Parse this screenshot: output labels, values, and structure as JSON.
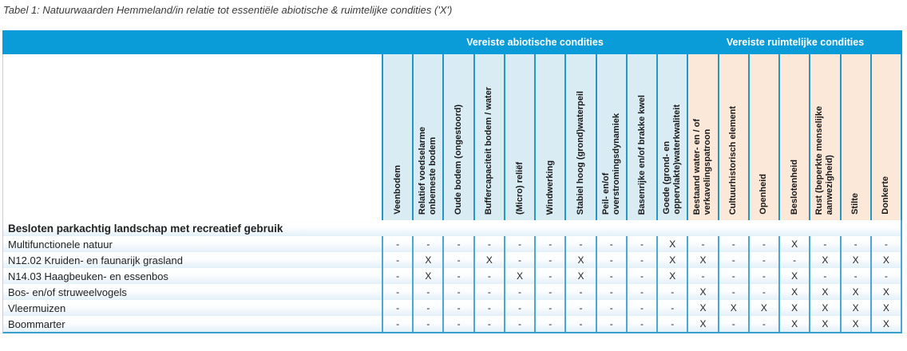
{
  "title": "Tabel 1: Natuurwaarden Hemmeland/in relatie tot essentiële abiotische & ruimtelijke condities ('X')",
  "groups": [
    {
      "label": "Vereiste abiotische condities",
      "columns": 10
    },
    {
      "label": "Vereiste ruimtelijke condities",
      "columns": 7
    }
  ],
  "columns": [
    "Veenbodem",
    "Relatief voedselarme\nonbemeste bodem",
    "Oude bodem (ongestoord)",
    "Buffercapaciteit bodem / water",
    "(Micro) reliëf",
    "Windwerking",
    "Stabiel hoog (grond)waterpeil",
    "Peil- en/of\noverstromingsdynamiek",
    "Basenrijke en/of brakke kwel",
    "Goede (grond- en\noppervlakte)waterkwaliteit",
    "Bestaand water- en / of\nverkavelingspatroon",
    "Cultuurhistorisch element",
    "Openheid",
    "Beslotenheid",
    "Rust (beperkte menselijke\naanwezigheid)",
    "Stilte",
    "Donkerte"
  ],
  "section_header": "Besloten parkachtig landschap met recreatief gebruik",
  "rows": [
    {
      "label": "Multifunctionele natuur",
      "values": [
        "-",
        "-",
        "-",
        "-",
        "-",
        "-",
        "-",
        "-",
        "-",
        "X",
        "-",
        "-",
        "-",
        "X",
        "-",
        "-",
        "-"
      ]
    },
    {
      "label": "N12.02 Kruiden- en faunarijk grasland",
      "values": [
        "-",
        "X",
        "-",
        "X",
        "-",
        "-",
        "X",
        "-",
        "-",
        "X",
        "X",
        "-",
        "-",
        "-",
        "X",
        "X",
        "X"
      ]
    },
    {
      "label": "N14.03 Haagbeuken- en essenbos",
      "values": [
        "-",
        "X",
        "-",
        "-",
        "X",
        "-",
        "X",
        "-",
        "-",
        "X",
        "-",
        "-",
        "-",
        "X",
        "-",
        "-",
        "-"
      ]
    },
    {
      "label": "Bos- en/of struweelvogels",
      "values": [
        "-",
        "-",
        "-",
        "-",
        "-",
        "-",
        "-",
        "-",
        "-",
        "-",
        "X",
        "-",
        "-",
        "X",
        "X",
        "X",
        "X"
      ]
    },
    {
      "label": "Vleermuizen",
      "values": [
        "-",
        "-",
        "-",
        "-",
        "-",
        "-",
        "-",
        "-",
        "-",
        "-",
        "X",
        "X",
        "X",
        "X",
        "X",
        "X",
        "X"
      ]
    },
    {
      "label": "Boommarter",
      "values": [
        "-",
        "-",
        "-",
        "-",
        "-",
        "-",
        "-",
        "-",
        "-",
        "-",
        "X",
        "-",
        "-",
        "X",
        "X",
        "X",
        "X"
      ]
    }
  ],
  "marks": {
    "required": "X",
    "not_required": "-"
  },
  "colors": {
    "header_bar": "#0a9cd8",
    "abiotic_fill": "#d9ecf4",
    "spatial_fill": "#fce8d9",
    "header_divider": "#2398c4",
    "body_divider": "#4aa6d2",
    "bottom_border": "#3a9fcb",
    "left_border": "#aed6ea",
    "row_tint": "#e3f0f8"
  }
}
